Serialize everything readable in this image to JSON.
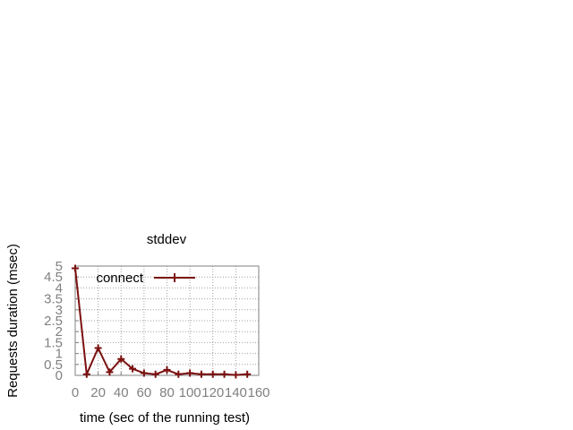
{
  "chart_data": {
    "type": "line",
    "title": "stddev",
    "xlabel": "time (sec of the running test)",
    "ylabel": "Requests duration (msec)",
    "xlim": [
      0,
      160
    ],
    "ylim": [
      0,
      5
    ],
    "x_ticks": [
      "0",
      "20",
      "40",
      "60",
      "80",
      "100",
      "120",
      "140",
      "160"
    ],
    "y_ticks": [
      "0",
      "0.5",
      "1",
      "1.5",
      "2",
      "2.5",
      "3",
      "3.5",
      "4",
      "4.5",
      "5"
    ],
    "grid": true,
    "legend_position": "top-left",
    "series": [
      {
        "name": "connect",
        "color": "#7b1010",
        "marker": "plus",
        "x": [
          0,
          10,
          20,
          30,
          40,
          50,
          60,
          70,
          80,
          90,
          100,
          110,
          120,
          130,
          140,
          150
        ],
        "y": [
          4.9,
          0.05,
          1.25,
          0.15,
          0.75,
          0.3,
          0.1,
          0.05,
          0.25,
          0.05,
          0.1,
          0.05,
          0.05,
          0.05,
          0.02,
          0.05
        ]
      }
    ]
  }
}
